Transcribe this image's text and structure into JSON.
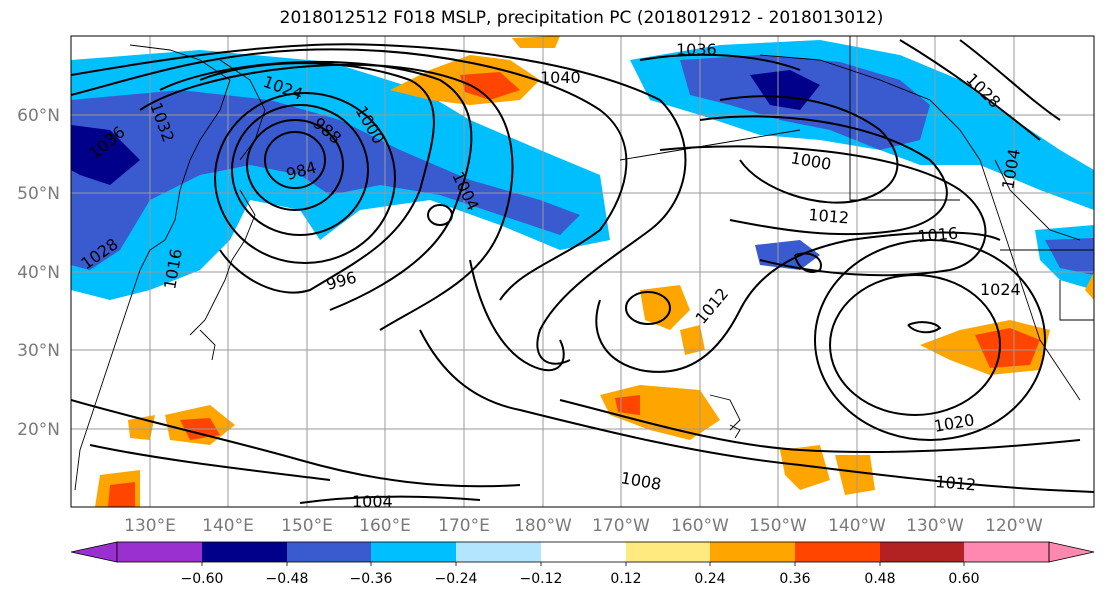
{
  "title": "2018012512 F018 MSLP, precipitation PC (2018012912 - 2018013012)",
  "lat_labels": [
    "60°N",
    "50°N",
    "40°N",
    "30°N",
    "20°N"
  ],
  "lon_labels": [
    "130°E",
    "140°E",
    "150°E",
    "160°E",
    "170°E",
    "180°W",
    "170°W",
    "160°W",
    "150°W",
    "140°W",
    "130°W",
    "120°W"
  ],
  "isobar_labels": [
    "1036",
    "1040",
    "1024",
    "1032",
    "1036",
    "1028",
    "1000",
    "1012",
    "1016",
    "1004",
    "1012",
    "1000",
    "1024",
    "996",
    "1020",
    "1008",
    "1012",
    "1004",
    "1016",
    "1028",
    "988",
    "984",
    "1004"
  ],
  "colorbar": {
    "colors": [
      "#9b30d0",
      "#00008b",
      "#3a5bd0",
      "#00bfff",
      "#b3e5ff",
      "#ffffff",
      "#ffea80",
      "#ffa500",
      "#ff4500",
      "#b22222",
      "#ff88b0"
    ],
    "labels": [
      "−0.60",
      "−0.48",
      "−0.36",
      "−0.24",
      "−0.12",
      "0.12",
      "0.24",
      "0.36",
      "0.48",
      "0.60"
    ]
  }
}
